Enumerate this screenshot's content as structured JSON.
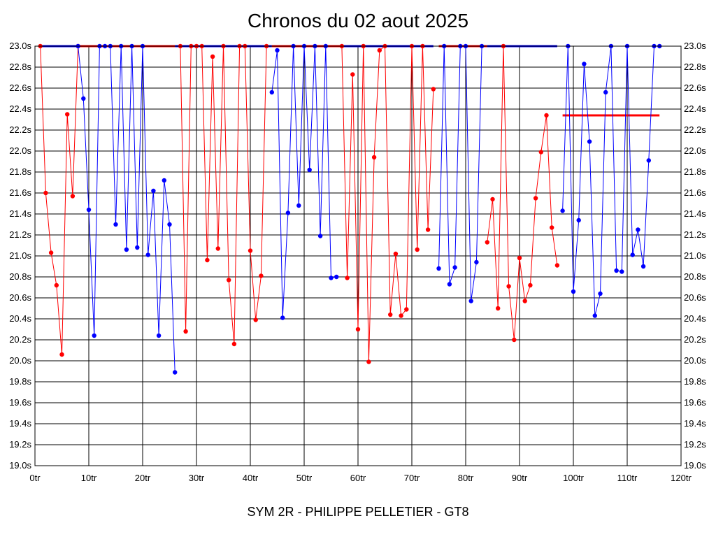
{
  "chart_data": {
    "type": "line",
    "title": "Chronos du 02 aout 2025",
    "footer": "SYM 2R - PHILIPPE PELLETIER - GT8",
    "x_unit": "tr",
    "y_unit": "s",
    "xlim": [
      0,
      120
    ],
    "ylim": [
      19.0,
      23.0
    ],
    "x_ticks": [
      0,
      10,
      20,
      30,
      40,
      50,
      60,
      70,
      80,
      90,
      100,
      110,
      120
    ],
    "y_ticks": [
      19.0,
      19.2,
      19.4,
      19.6,
      19.8,
      20.0,
      20.2,
      20.4,
      20.6,
      20.8,
      21.0,
      21.2,
      21.4,
      21.6,
      21.8,
      22.0,
      22.2,
      22.4,
      22.6,
      22.8,
      23.0
    ],
    "y_axis_both_sides": true,
    "grid": true,
    "colors": {
      "red": "#ff0000",
      "blue": "#0000ff"
    },
    "segments": [
      {
        "color": "red",
        "x": [
          1,
          2,
          3,
          4,
          5,
          6,
          7,
          8
        ],
        "y": [
          23.0,
          21.6,
          21.03,
          20.72,
          20.06,
          22.35,
          21.57,
          23.0
        ]
      },
      {
        "color": "blue",
        "x": [
          8,
          9,
          10,
          11,
          12,
          13,
          14,
          15,
          16,
          17,
          18,
          19,
          20,
          21,
          22,
          23,
          24,
          25,
          26
        ],
        "y": [
          23.0,
          22.5,
          21.44,
          20.24,
          23.0,
          23.0,
          23.0,
          21.3,
          23.0,
          21.06,
          23.0,
          21.08,
          23.0,
          21.01,
          21.62,
          20.24,
          21.72,
          21.3,
          19.89
        ]
      },
      {
        "color": "red",
        "x": [
          27,
          28,
          29,
          30,
          31,
          32,
          33,
          34,
          35,
          36,
          37,
          38,
          39,
          40,
          41,
          42,
          43
        ],
        "y": [
          23.0,
          20.28,
          23.0,
          23.0,
          23.0,
          20.96,
          22.9,
          21.07,
          23.0,
          20.77,
          20.16,
          23.0,
          23.0,
          21.05,
          20.39,
          20.81,
          23.0
        ]
      },
      {
        "color": "blue",
        "x": [
          44,
          45,
          46,
          47,
          48,
          49,
          50,
          51,
          52,
          53,
          54,
          55,
          56
        ],
        "y": [
          22.56,
          22.96,
          20.41,
          21.41,
          23.0,
          21.48,
          23.0,
          21.82,
          23.0,
          21.19,
          23.0,
          20.79,
          20.8
        ]
      },
      {
        "color": "red",
        "x": [
          57,
          58,
          59,
          60,
          61,
          62,
          63,
          64,
          65,
          66,
          67,
          68,
          69,
          70,
          71,
          72,
          73,
          74
        ],
        "y": [
          23.0,
          20.79,
          22.73,
          20.3,
          23.0,
          19.99,
          21.94,
          22.96,
          23.0,
          20.44,
          21.02,
          20.43,
          20.49,
          23.0,
          21.06,
          23.0,
          21.25,
          22.59
        ]
      },
      {
        "color": "blue",
        "x": [
          75,
          76,
          77,
          78,
          79,
          80,
          81,
          82,
          83
        ],
        "y": [
          20.88,
          23.0,
          20.73,
          20.89,
          23.0,
          23.0,
          20.57,
          20.94,
          23.0
        ]
      },
      {
        "color": "red",
        "x": [
          84,
          85,
          86,
          87,
          88,
          89,
          90,
          91,
          92,
          93,
          94,
          95,
          96,
          97
        ],
        "y": [
          21.13,
          21.54,
          20.5,
          23.0,
          20.71,
          20.2,
          20.98,
          20.57,
          20.72,
          21.55,
          21.99,
          22.34,
          21.27,
          20.91
        ]
      },
      {
        "color": "blue",
        "x": [
          98,
          99,
          100,
          101,
          102,
          103,
          104,
          105,
          106,
          107,
          108,
          109,
          110,
          111,
          112,
          113,
          114,
          115,
          116
        ],
        "y": [
          21.43,
          23.0,
          20.66,
          21.34,
          22.83,
          22.09,
          20.43,
          20.64,
          22.56,
          23.0,
          20.86,
          20.85,
          23.0,
          21.01,
          21.25,
          20.9,
          21.91,
          23.0,
          23.0
        ]
      }
    ],
    "reference_lines": [
      {
        "color": "blue",
        "y": 23.0,
        "x_start": 1,
        "x_end": 8
      },
      {
        "color": "red",
        "y": 23.0,
        "x_start": 8,
        "x_end": 26
      },
      {
        "color": "blue",
        "y": 23.0,
        "x_start": 26,
        "x_end": 44
      },
      {
        "color": "red",
        "y": 23.0,
        "x_start": 44,
        "x_end": 57
      },
      {
        "color": "blue",
        "y": 23.0,
        "x_start": 57,
        "x_end": 74
      },
      {
        "color": "red",
        "y": 23.0,
        "x_start": 75,
        "x_end": 84
      },
      {
        "color": "blue",
        "y": 23.0,
        "x_start": 84,
        "x_end": 97
      },
      {
        "color": "red",
        "y": 22.34,
        "x_start": 98,
        "x_end": 116
      }
    ]
  }
}
